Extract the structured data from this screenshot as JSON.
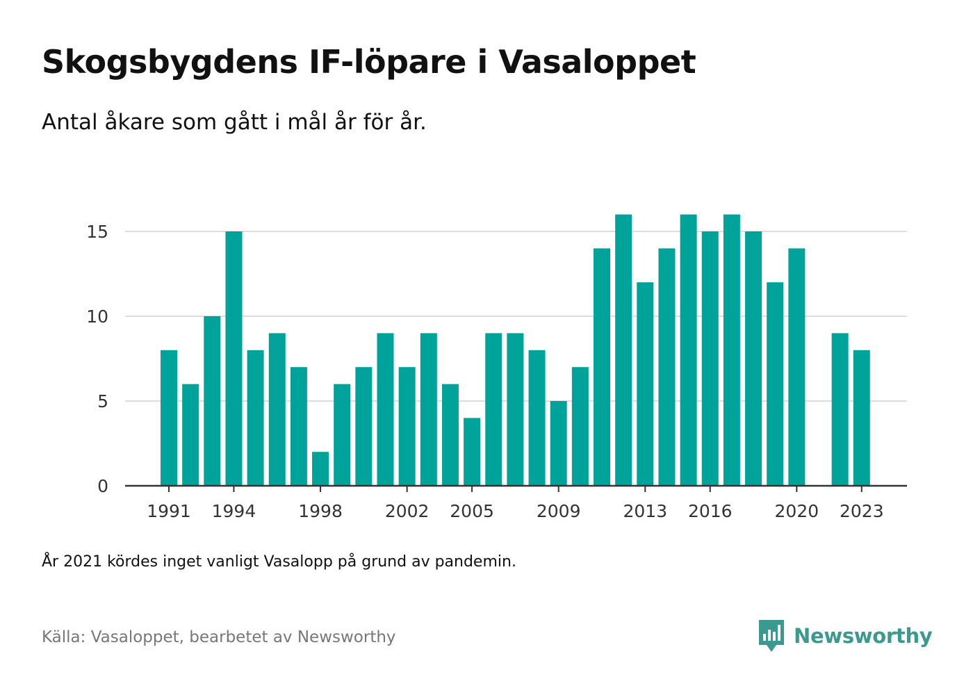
{
  "title": "Skogsbygdens IF-löpare i Vasaloppet",
  "subtitle": "Antal åkare som gått i mål år för år.",
  "note": "År 2021 kördes inget vanligt Vasalopp på grund av pandemin.",
  "source": "Källa: Vasaloppet, bearbetet av Newsworthy",
  "brand": {
    "name": "Newsworthy",
    "icon": "newsworthy-logo-icon",
    "color": "#3a9a8f"
  },
  "chart_data": {
    "type": "bar",
    "title": "Skogsbygdens IF-löpare i Vasaloppet",
    "xlabel": "",
    "ylabel": "",
    "bar_color": "#00a39a",
    "grid": true,
    "legend": "none",
    "ylim": [
      0,
      16
    ],
    "yticks": [
      0,
      5,
      10,
      15
    ],
    "xticks": [
      1991,
      1994,
      1998,
      2002,
      2005,
      2009,
      2013,
      2016,
      2020,
      2023
    ],
    "categories": [
      1991,
      1992,
      1993,
      1994,
      1995,
      1996,
      1997,
      1998,
      1999,
      2000,
      2001,
      2002,
      2003,
      2004,
      2005,
      2006,
      2007,
      2008,
      2009,
      2010,
      2011,
      2012,
      2013,
      2014,
      2015,
      2016,
      2017,
      2018,
      2019,
      2020,
      2021,
      2022,
      2023
    ],
    "values": [
      8,
      6,
      10,
      15,
      8,
      9,
      7,
      2,
      6,
      7,
      9,
      7,
      9,
      6,
      4,
      9,
      9,
      8,
      5,
      7,
      14,
      16,
      12,
      14,
      16,
      15,
      16,
      15,
      12,
      14,
      null,
      9,
      8
    ]
  }
}
